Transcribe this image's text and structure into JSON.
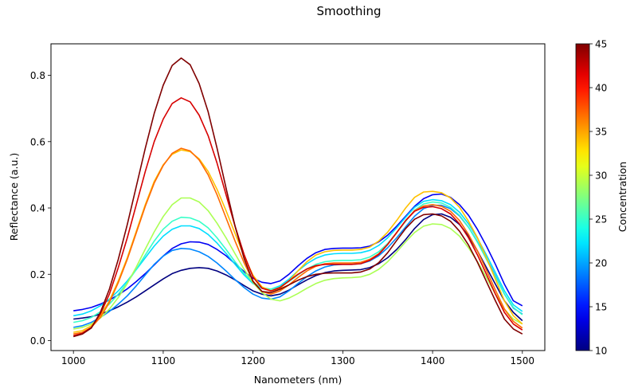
{
  "chart_data": {
    "type": "line",
    "title": "Smoothing",
    "xlabel": "Nanometers (nm)",
    "ylabel": "Reflectance (a.u.)",
    "xlim": [
      975,
      1525
    ],
    "ylim": [
      -0.03,
      0.895
    ],
    "xticks": [
      1000,
      1100,
      1200,
      1300,
      1400,
      1500
    ],
    "xtick_labels": [
      "1000",
      "1100",
      "1200",
      "1300",
      "1400",
      "1500"
    ],
    "yticks": [
      0.0,
      0.2,
      0.4,
      0.6,
      0.8
    ],
    "ytick_labels": [
      "0.0",
      "0.2",
      "0.4",
      "0.6",
      "0.8"
    ],
    "grid": false,
    "colorbar": {
      "label": "Concentration",
      "colormap": "jet",
      "range": [
        10,
        45
      ],
      "ticks": [
        10,
        15,
        20,
        25,
        30,
        35,
        40,
        45
      ],
      "tick_labels": [
        "10",
        "15",
        "20",
        "25",
        "30",
        "35",
        "40",
        "45"
      ]
    },
    "x": [
      1000,
      1010,
      1020,
      1030,
      1040,
      1050,
      1060,
      1070,
      1080,
      1090,
      1100,
      1110,
      1120,
      1130,
      1140,
      1150,
      1160,
      1170,
      1180,
      1190,
      1200,
      1210,
      1220,
      1230,
      1240,
      1250,
      1260,
      1270,
      1280,
      1290,
      1300,
      1310,
      1320,
      1330,
      1340,
      1350,
      1360,
      1370,
      1380,
      1390,
      1400,
      1410,
      1420,
      1430,
      1440,
      1450,
      1460,
      1470,
      1480,
      1490,
      1500
    ],
    "series": [
      {
        "name": "10",
        "concentration": 10,
        "values": [
          0.065,
          0.068,
          0.072,
          0.08,
          0.09,
          0.102,
          0.116,
          0.132,
          0.15,
          0.168,
          0.186,
          0.202,
          0.212,
          0.218,
          0.22,
          0.218,
          0.21,
          0.198,
          0.183,
          0.166,
          0.15,
          0.14,
          0.135,
          0.14,
          0.152,
          0.168,
          0.183,
          0.196,
          0.205,
          0.21,
          0.212,
          0.213,
          0.214,
          0.22,
          0.232,
          0.25,
          0.275,
          0.305,
          0.338,
          0.365,
          0.38,
          0.382,
          0.372,
          0.35,
          0.315,
          0.27,
          0.22,
          0.17,
          0.12,
          0.085,
          0.06
        ]
      },
      {
        "name": "14",
        "concentration": 14,
        "values": [
          0.09,
          0.094,
          0.1,
          0.11,
          0.122,
          0.138,
          0.156,
          0.178,
          0.202,
          0.228,
          0.255,
          0.278,
          0.292,
          0.298,
          0.297,
          0.29,
          0.275,
          0.256,
          0.232,
          0.208,
          0.188,
          0.176,
          0.172,
          0.18,
          0.2,
          0.225,
          0.248,
          0.265,
          0.275,
          0.278,
          0.279,
          0.279,
          0.28,
          0.285,
          0.298,
          0.318,
          0.345,
          0.375,
          0.405,
          0.428,
          0.44,
          0.442,
          0.432,
          0.41,
          0.378,
          0.335,
          0.285,
          0.23,
          0.17,
          0.12,
          0.105
        ]
      },
      {
        "name": "19",
        "concentration": 19,
        "values": [
          0.04,
          0.045,
          0.055,
          0.07,
          0.088,
          0.11,
          0.135,
          0.165,
          0.198,
          0.23,
          0.255,
          0.272,
          0.278,
          0.276,
          0.268,
          0.254,
          0.234,
          0.21,
          0.184,
          0.16,
          0.14,
          0.128,
          0.125,
          0.132,
          0.15,
          0.172,
          0.193,
          0.21,
          0.222,
          0.228,
          0.23,
          0.23,
          0.232,
          0.24,
          0.256,
          0.28,
          0.31,
          0.343,
          0.375,
          0.398,
          0.408,
          0.408,
          0.398,
          0.376,
          0.342,
          0.298,
          0.248,
          0.195,
          0.14,
          0.098,
          0.08
        ]
      },
      {
        "name": "22",
        "concentration": 22,
        "values": [
          0.075,
          0.08,
          0.09,
          0.105,
          0.125,
          0.15,
          0.18,
          0.214,
          0.25,
          0.285,
          0.315,
          0.336,
          0.346,
          0.346,
          0.338,
          0.32,
          0.294,
          0.263,
          0.23,
          0.198,
          0.172,
          0.158,
          0.155,
          0.165,
          0.185,
          0.21,
          0.232,
          0.248,
          0.258,
          0.262,
          0.263,
          0.263,
          0.265,
          0.272,
          0.287,
          0.31,
          0.34,
          0.372,
          0.402,
          0.42,
          0.425,
          0.422,
          0.41,
          0.387,
          0.352,
          0.308,
          0.258,
          0.205,
          0.15,
          0.108,
          0.088
        ]
      },
      {
        "name": "25",
        "concentration": 25,
        "values": [
          0.055,
          0.06,
          0.07,
          0.087,
          0.11,
          0.14,
          0.175,
          0.215,
          0.258,
          0.3,
          0.336,
          0.36,
          0.372,
          0.37,
          0.36,
          0.34,
          0.31,
          0.275,
          0.238,
          0.203,
          0.176,
          0.16,
          0.155,
          0.162,
          0.178,
          0.198,
          0.216,
          0.23,
          0.238,
          0.241,
          0.242,
          0.242,
          0.244,
          0.252,
          0.268,
          0.293,
          0.325,
          0.36,
          0.393,
          0.412,
          0.418,
          0.415,
          0.402,
          0.378,
          0.342,
          0.296,
          0.245,
          0.192,
          0.14,
          0.1,
          0.078
        ]
      },
      {
        "name": "29",
        "concentration": 29,
        "values": [
          0.035,
          0.04,
          0.05,
          0.068,
          0.095,
          0.13,
          0.172,
          0.222,
          0.276,
          0.328,
          0.374,
          0.41,
          0.43,
          0.43,
          0.418,
          0.392,
          0.354,
          0.31,
          0.262,
          0.215,
          0.175,
          0.145,
          0.125,
          0.12,
          0.128,
          0.142,
          0.158,
          0.172,
          0.182,
          0.187,
          0.189,
          0.19,
          0.192,
          0.2,
          0.215,
          0.238,
          0.267,
          0.298,
          0.326,
          0.345,
          0.352,
          0.35,
          0.338,
          0.315,
          0.28,
          0.238,
          0.19,
          0.14,
          0.095,
          0.065,
          0.05
        ]
      },
      {
        "name": "34",
        "concentration": 34,
        "values": [
          0.025,
          0.03,
          0.045,
          0.075,
          0.12,
          0.18,
          0.25,
          0.33,
          0.41,
          0.48,
          0.53,
          0.562,
          0.575,
          0.57,
          0.548,
          0.51,
          0.456,
          0.392,
          0.323,
          0.255,
          0.197,
          0.162,
          0.15,
          0.158,
          0.18,
          0.21,
          0.238,
          0.258,
          0.268,
          0.272,
          0.273,
          0.273,
          0.275,
          0.282,
          0.3,
          0.327,
          0.362,
          0.4,
          0.432,
          0.448,
          0.45,
          0.446,
          0.43,
          0.402,
          0.36,
          0.31,
          0.25,
          0.185,
          0.12,
          0.075,
          0.05
        ]
      },
      {
        "name": "37",
        "concentration": 37,
        "values": [
          0.02,
          0.025,
          0.04,
          0.07,
          0.115,
          0.175,
          0.245,
          0.325,
          0.405,
          0.475,
          0.528,
          0.565,
          0.58,
          0.572,
          0.545,
          0.5,
          0.44,
          0.37,
          0.3,
          0.235,
          0.18,
          0.148,
          0.14,
          0.15,
          0.168,
          0.19,
          0.21,
          0.224,
          0.232,
          0.234,
          0.234,
          0.234,
          0.236,
          0.245,
          0.262,
          0.29,
          0.325,
          0.362,
          0.392,
          0.406,
          0.41,
          0.405,
          0.39,
          0.362,
          0.32,
          0.27,
          0.212,
          0.152,
          0.095,
          0.058,
          0.038
        ]
      },
      {
        "name": "42",
        "concentration": 42,
        "values": [
          0.015,
          0.022,
          0.04,
          0.08,
          0.14,
          0.22,
          0.31,
          0.41,
          0.51,
          0.6,
          0.668,
          0.715,
          0.732,
          0.72,
          0.68,
          0.618,
          0.535,
          0.44,
          0.345,
          0.26,
          0.192,
          0.158,
          0.15,
          0.16,
          0.18,
          0.2,
          0.216,
          0.226,
          0.23,
          0.23,
          0.23,
          0.23,
          0.232,
          0.242,
          0.26,
          0.29,
          0.326,
          0.362,
          0.39,
          0.402,
          0.404,
          0.398,
          0.382,
          0.352,
          0.31,
          0.258,
          0.2,
          0.14,
          0.085,
          0.05,
          0.032
        ]
      },
      {
        "name": "45",
        "concentration": 45,
        "values": [
          0.012,
          0.02,
          0.038,
          0.085,
          0.155,
          0.245,
          0.35,
          0.465,
          0.58,
          0.685,
          0.77,
          0.83,
          0.852,
          0.832,
          0.775,
          0.69,
          0.58,
          0.46,
          0.345,
          0.248,
          0.178,
          0.148,
          0.145,
          0.155,
          0.168,
          0.182,
          0.193,
          0.2,
          0.203,
          0.204,
          0.204,
          0.204,
          0.207,
          0.216,
          0.235,
          0.265,
          0.302,
          0.338,
          0.366,
          0.38,
          0.382,
          0.376,
          0.36,
          0.33,
          0.288,
          0.236,
          0.178,
          0.12,
          0.065,
          0.035,
          0.02
        ]
      }
    ]
  }
}
